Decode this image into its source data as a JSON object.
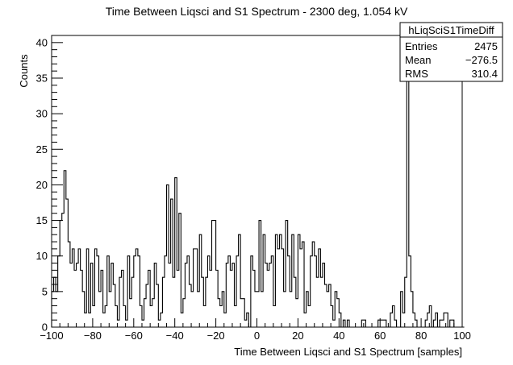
{
  "chart_data": {
    "type": "histogram",
    "title": "Time Between Liqsci and S1 Spectrum - 2300 deg, 1.054 kV",
    "xlabel": "Time Between Liqsci and S1 Spectrum [samples]",
    "ylabel": "Counts",
    "xlim": [
      -100,
      100
    ],
    "ylim": [
      0,
      41
    ],
    "x_ticks": [
      -100,
      -80,
      -60,
      -40,
      -20,
      0,
      20,
      40,
      60,
      80,
      100
    ],
    "x_tick_labels": [
      "−100",
      "−80",
      "−60",
      "−40",
      "−20",
      "0",
      "20",
      "40",
      "60",
      "80",
      "100"
    ],
    "y_ticks": [
      0,
      5,
      10,
      15,
      20,
      25,
      30,
      35,
      40
    ],
    "y_tick_labels": [
      "0",
      "5",
      "10",
      "15",
      "20",
      "25",
      "30",
      "35",
      "40"
    ],
    "bin_width": 1,
    "bins_start": -100,
    "counts": [
      5,
      7,
      5,
      10,
      15,
      16,
      22,
      18,
      12,
      9,
      11,
      8,
      9,
      11,
      8,
      5,
      2,
      11,
      2,
      9,
      3,
      11,
      10,
      5,
      8,
      2,
      3,
      10,
      5,
      9,
      6,
      3,
      1,
      7,
      8,
      3,
      1,
      10,
      4,
      7,
      10,
      11,
      10,
      3,
      1,
      4,
      6,
      8,
      3,
      4,
      9,
      6,
      1,
      2,
      7,
      10,
      20,
      9,
      18,
      7,
      21,
      8,
      16,
      2,
      4,
      9,
      10,
      6,
      5,
      11,
      11,
      5,
      13,
      7,
      3,
      7,
      10,
      8,
      15,
      15,
      8,
      4,
      3,
      5,
      2,
      9,
      10,
      8,
      9,
      3,
      10,
      13,
      4,
      4,
      1,
      2,
      0,
      10,
      8,
      5,
      5,
      15,
      5,
      13,
      9,
      8,
      9,
      10,
      3,
      13,
      11,
      13,
      11,
      5,
      15,
      10,
      5,
      13,
      7,
      4,
      13,
      11,
      12,
      2,
      5,
      3,
      10,
      12,
      10,
      7,
      11,
      7,
      9,
      6,
      5,
      6,
      3,
      1,
      5,
      4,
      2,
      0,
      1,
      0,
      1,
      0,
      0,
      0,
      0,
      0,
      0,
      1,
      1,
      0,
      0,
      0,
      0,
      0,
      0,
      1,
      1,
      1,
      1,
      0,
      0,
      2,
      3,
      1,
      0,
      0,
      5,
      2,
      7,
      39,
      10,
      5,
      2,
      1,
      0,
      0,
      0,
      0,
      1,
      2,
      3,
      0,
      1,
      2,
      0,
      1,
      1,
      2,
      2,
      0,
      1,
      1,
      0,
      0,
      0,
      0,
      0
    ],
    "grid": false,
    "legend": "top-right",
    "stats": {
      "name": "hLiqSciS1TimeDiff",
      "rows": [
        {
          "label": "Entries",
          "value": "2475"
        },
        {
          "label": "Mean",
          "value": "−276.5"
        },
        {
          "label": "RMS",
          "value": "310.4"
        }
      ]
    }
  }
}
